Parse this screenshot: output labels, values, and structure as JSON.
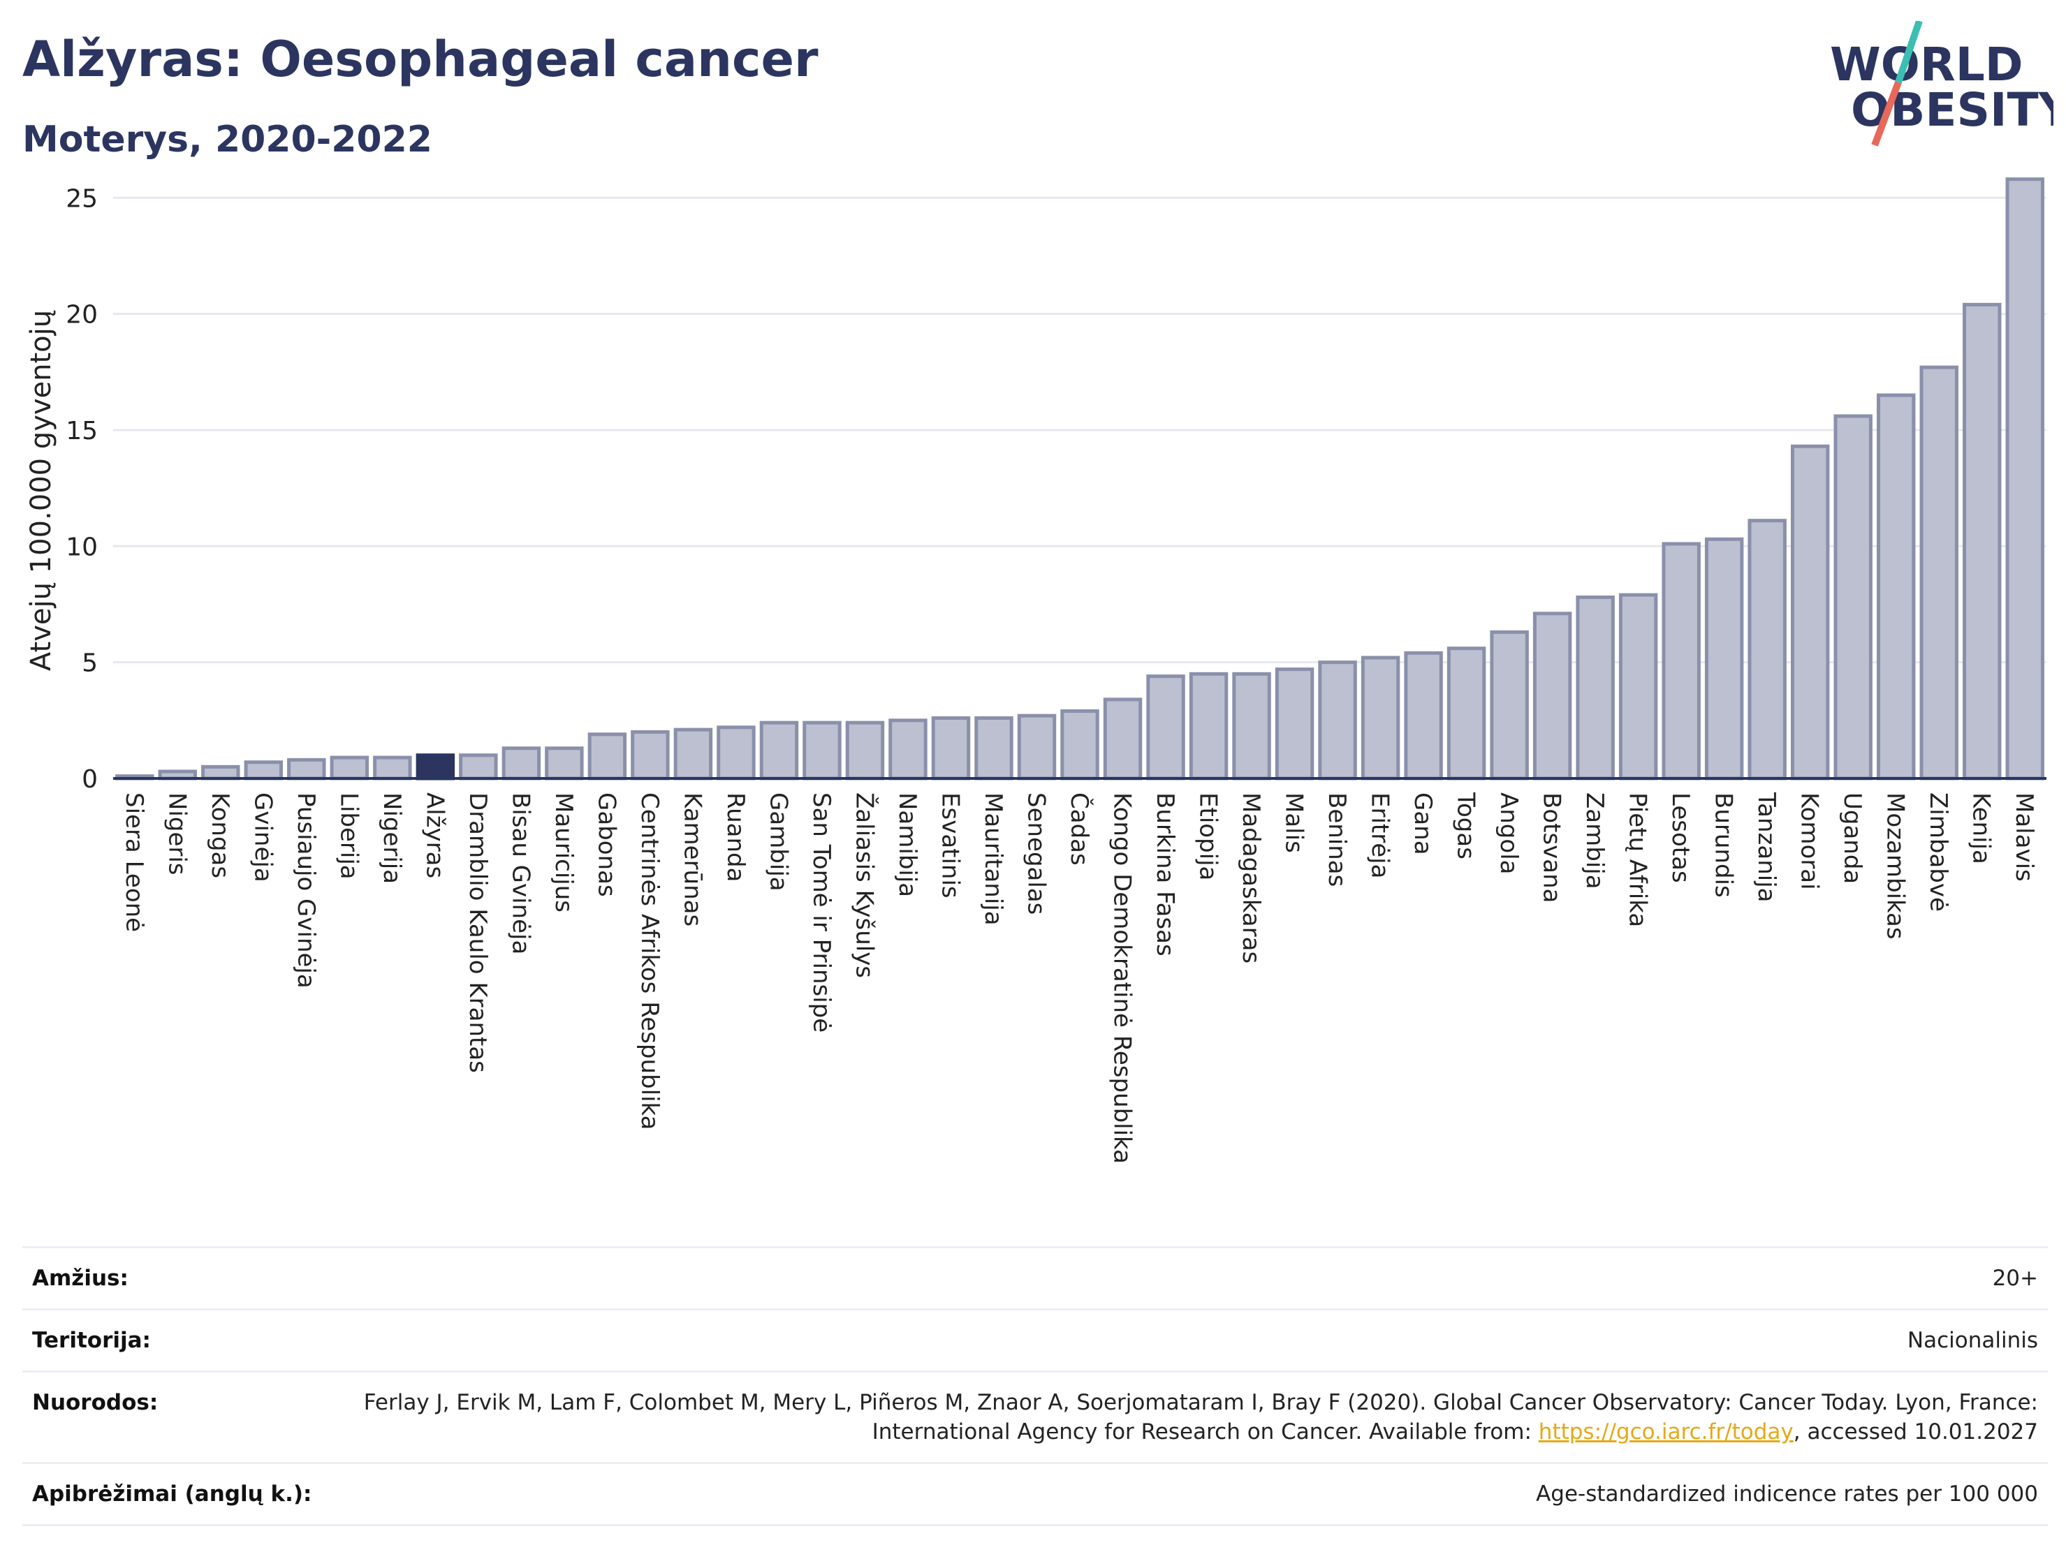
{
  "title": "Alžyras: Oesophageal cancer",
  "subtitle": "Moterys, 2020-2022",
  "logo": {
    "line1": "WORLD",
    "line2": "OBESITY",
    "colors": {
      "text": "#2b3560",
      "slash_top": "#3bbfb3",
      "slash_bottom": "#e8685a"
    }
  },
  "colors": {
    "bar": "#bcc0d0",
    "bar_stroke": "#8a90aa",
    "highlight": "#2b3560",
    "grid": "#e6e8ef",
    "axis": "#2b3560"
  },
  "chart_data": {
    "type": "bar",
    "ylabel": "Atvejų 100.000 gyventojų",
    "xlabel": "",
    "ylim": [
      0,
      26
    ],
    "yticks": [
      0,
      5,
      10,
      15,
      20,
      25
    ],
    "grid": true,
    "highlight": "Alžyras",
    "categories": [
      "Siera Leonė",
      "Nigeris",
      "Kongas",
      "Gvinėja",
      "Pusiaujo Gvinėja",
      "Liberija",
      "Nigerija",
      "Alžyras",
      "Dramblio Kaulo Krantas",
      "Bisau Gvinėja",
      "Mauricijus",
      "Gabonas",
      "Centrinės Afrikos Respublika",
      "Kamerūnas",
      "Ruanda",
      "Gambija",
      "San Tomė ir Prinsipė",
      "Žaliasis Kyšulys",
      "Namibija",
      "Esvatinis",
      "Mauritanija",
      "Senegalas",
      "Čadas",
      "Kongo Demokratinė Respublika",
      "Burkina Fasas",
      "Etiopija",
      "Madagaskaras",
      "Malis",
      "Beninas",
      "Eritrėja",
      "Gana",
      "Togas",
      "Angola",
      "Botsvana",
      "Zambija",
      "Pietų Afrika",
      "Lesotas",
      "Burundis",
      "Tanzanija",
      "Komorai",
      "Uganda",
      "Mozambikas",
      "Zimbabvė",
      "Kenija",
      "Malavis"
    ],
    "values": [
      0.1,
      0.3,
      0.5,
      0.7,
      0.8,
      0.9,
      0.9,
      1.0,
      1.0,
      1.3,
      1.3,
      1.9,
      2.0,
      2.1,
      2.2,
      2.4,
      2.4,
      2.4,
      2.5,
      2.6,
      2.6,
      2.7,
      2.9,
      3.4,
      4.4,
      4.5,
      4.5,
      4.7,
      5.0,
      5.2,
      5.4,
      5.6,
      6.3,
      7.1,
      7.8,
      7.9,
      10.1,
      10.3,
      11.1,
      14.3,
      15.6,
      16.5,
      17.7,
      20.4,
      25.8
    ]
  },
  "info": {
    "age_label": "Amžius:",
    "age_value": "20+",
    "territory_label": "Teritorija:",
    "territory_value": "Nacionalinis",
    "references_label": "Nuorodos:",
    "references_text": "Ferlay J, Ervik M, Lam F, Colombet M, Mery L, Piñeros M, Znaor A, Soerjomataram I, Bray F (2020). Global Cancer Observatory: Cancer Today. Lyon, France: International Agency for Research on Cancer. Available from: ",
    "references_link": "https://gco.iarc.fr/today",
    "references_suffix": ", accessed 10.01.2027",
    "definitions_label": "Apibrėžimai (anglų k.):",
    "definitions_value": "Age-standardized indicence rates per 100 000"
  }
}
